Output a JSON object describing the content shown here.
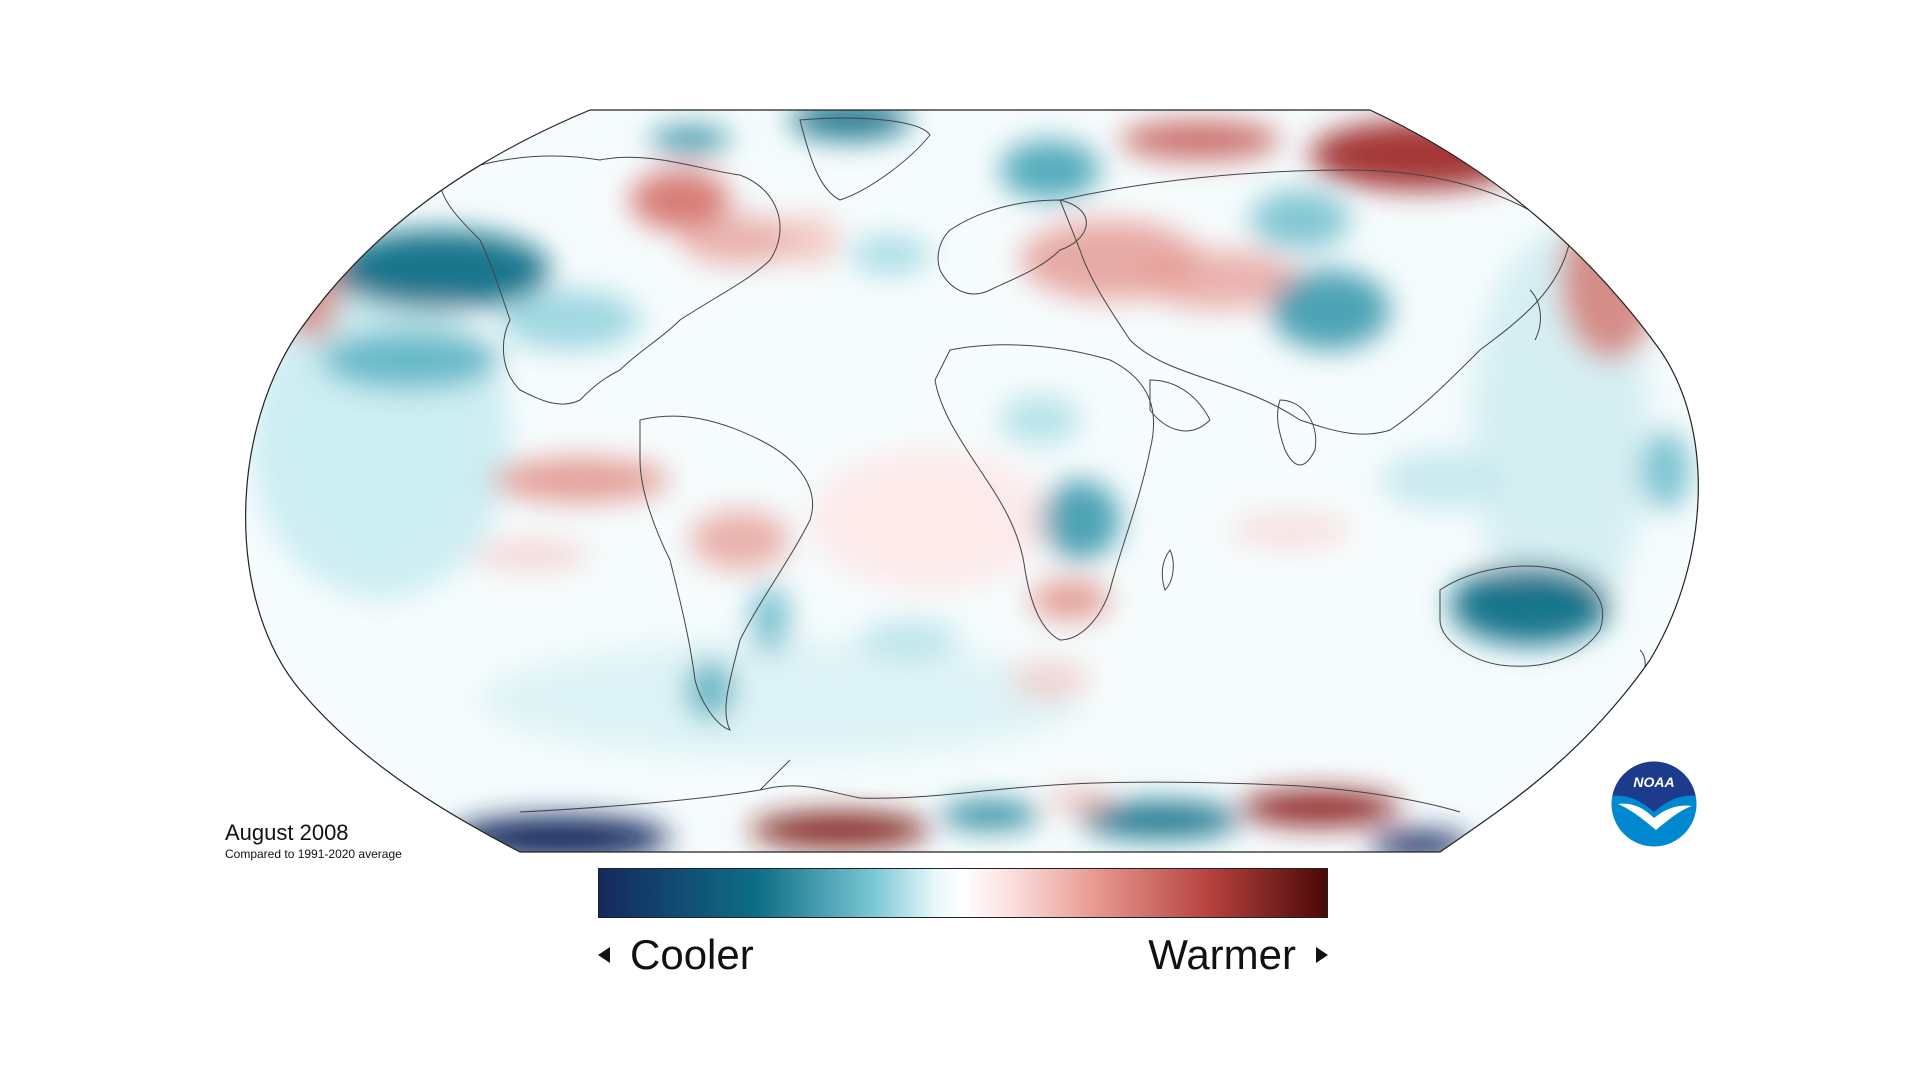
{
  "caption": {
    "title": "August 2008",
    "subtitle": "Compared to 1991-2020 average"
  },
  "legend": {
    "cooler_label": "Cooler",
    "warmer_label": "Warmer",
    "colors": [
      "#14295e",
      "#0e6f86",
      "#7cc9d6",
      "#e6f7fa",
      "#ffffff",
      "#fbe3e1",
      "#e89a92",
      "#b5413d",
      "#4a0808"
    ]
  },
  "map": {
    "projection": "Robinson",
    "ocean_color": "#ffffff",
    "coastline_color": "#444444",
    "anomaly_regions": [
      {
        "region": "north-pacific",
        "type": "cool",
        "intensity": 0.8
      },
      {
        "region": "eastern-pacific-tropics",
        "type": "warm",
        "intensity": 0.6
      },
      {
        "region": "eastern-canada",
        "type": "warm",
        "intensity": 0.6
      },
      {
        "region": "greenland-north",
        "type": "cool",
        "intensity": 0.5
      },
      {
        "region": "siberia-north",
        "type": "warm",
        "intensity": 0.9
      },
      {
        "region": "eastern-europe-central-asia",
        "type": "warm",
        "intensity": 0.5
      },
      {
        "region": "central-asia",
        "type": "cool",
        "intensity": 0.6
      },
      {
        "region": "australia",
        "type": "cool",
        "intensity": 0.8
      },
      {
        "region": "southern-africa",
        "type": "warm",
        "intensity": 0.5
      },
      {
        "region": "central-africa",
        "type": "cool",
        "intensity": 0.5
      },
      {
        "region": "south-america-north",
        "type": "warm",
        "intensity": 0.5
      },
      {
        "region": "antarctica-west",
        "type": "cool",
        "intensity": 1.0
      },
      {
        "region": "antarctica-center",
        "type": "warm",
        "intensity": 0.9
      },
      {
        "region": "antarctica-east",
        "type": "cool",
        "intensity": 0.8
      },
      {
        "region": "antarctica-far-east",
        "type": "warm",
        "intensity": 0.9
      },
      {
        "region": "north-pacific-east",
        "type": "warm",
        "intensity": 0.5
      },
      {
        "region": "north-atlantic-west",
        "type": "cool",
        "intensity": 0.4
      },
      {
        "region": "russia-far-east",
        "type": "warm",
        "intensity": 0.7
      }
    ]
  },
  "logo": {
    "text": "NOAA",
    "top_color": "#1c3b8c",
    "bottom_color": "#0088d1"
  }
}
